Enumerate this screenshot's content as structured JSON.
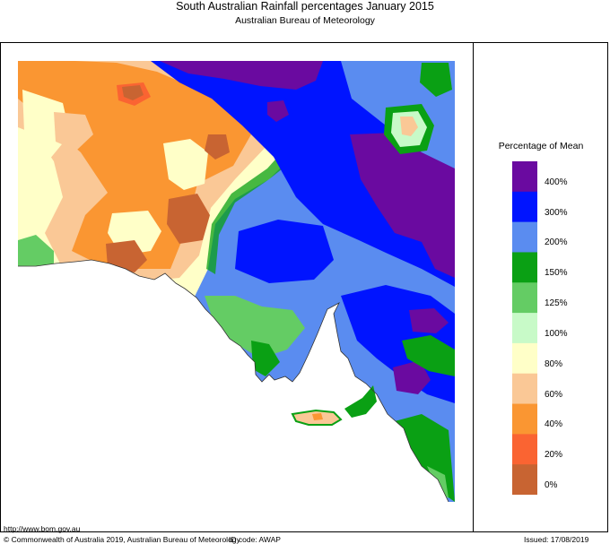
{
  "header": {
    "title": "South Australian Rainfall percentages   January 2015",
    "subtitle": "Australian Bureau of Meteorology"
  },
  "legend": {
    "title": "Percentage of Mean",
    "classes": [
      {
        "label": "400%",
        "color": "#6a0aa0"
      },
      {
        "label": "300%",
        "color": "#0014ff"
      },
      {
        "label": "200%",
        "color": "#5a8cf0"
      },
      {
        "label": "150%",
        "color": "#0aa014"
      },
      {
        "label": "125%",
        "color": "#64cc64"
      },
      {
        "label": "100%",
        "color": "#c8fac8"
      },
      {
        "label": "80%",
        "color": "#ffffc8"
      },
      {
        "label": "60%",
        "color": "#fac896"
      },
      {
        "label": "40%",
        "color": "#fa9632"
      },
      {
        "label": "20%",
        "color": "#fa6432"
      },
      {
        "label": "0%",
        "color": "#c86432"
      }
    ]
  },
  "footer": {
    "url": "http://www.bom.gov.au",
    "copyright": "© Commonwealth of Australia 2019, Australian Bureau of Meteorology",
    "id_code": "ID code: AWAP",
    "issued": "Issued: 17/08/2019"
  }
}
